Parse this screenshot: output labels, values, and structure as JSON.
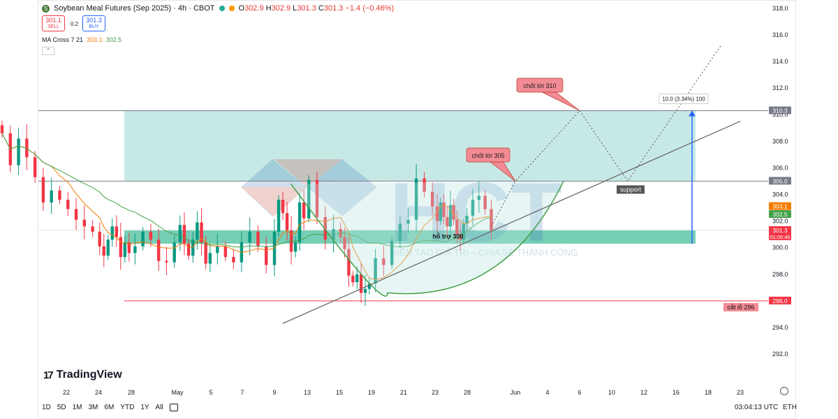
{
  "header": {
    "symbol_title": "Soybean Meal Futures (Sep 2025) · 4h · CBOT",
    "logo_letter": "S",
    "ohlc_prefix": "O",
    "open": "302.9",
    "high": "302.9",
    "low": "301.3",
    "close": "301.3",
    "change": "−1.4 (−0.46%)",
    "status_dot_green": "#22ab94",
    "status_dot_orange": "#ff9800"
  },
  "trade": {
    "sell_price": "301.1",
    "sell_label": "SELL",
    "spread": "0.2",
    "buy_price": "301.3",
    "buy_label": "BUY"
  },
  "indicator": {
    "name": "MA Cross 7 21",
    "fast_value": "303.1",
    "slow_value": "302.5"
  },
  "branding": {
    "tradingview": "TradingView",
    "watermark": "HCT",
    "watermark_slogan": "BIẾN TẠO GIÁ TRỊ – CHIA SẺ THÀNH CÔNG"
  },
  "bottom_bar": {
    "ranges": [
      "1D",
      "5D",
      "1M",
      "3M",
      "6M",
      "YTD",
      "1Y",
      "All"
    ],
    "time": "03:04:13 UTC",
    "session": "ETH"
  },
  "chart_data": {
    "type": "candlestick",
    "y_axis": {
      "min": 290.9,
      "max": 318.2,
      "ticks": [
        318.0,
        316.0,
        314.0,
        312.0,
        310.0,
        308.0,
        306.0,
        304.0,
        302.0,
        300.0,
        298.0,
        296.0,
        294.0,
        292.0
      ]
    },
    "x_labels": [
      "22",
      "24",
      "28",
      "May",
      "5",
      "7",
      "9",
      "13",
      "15",
      "19",
      "21",
      "23",
      "28",
      "Jun",
      "4",
      "6",
      "10",
      "12",
      "16",
      "18",
      "23"
    ],
    "x_label_dates": [
      "2025-04-22",
      "2025-04-24",
      "2025-04-28",
      "2025-05-01",
      "2025-05-05",
      "2025-05-07",
      "2025-05-09",
      "2025-05-13",
      "2025-05-15",
      "2025-05-19",
      "2025-05-21",
      "2025-05-23",
      "2025-05-28",
      "2025-06-01",
      "2025-06-04",
      "2025-06-06",
      "2025-06-10",
      "2025-06-12",
      "2025-06-16",
      "2025-06-18",
      "2025-06-23"
    ],
    "close_series": [
      308.6,
      306.2,
      308.2,
      306.8,
      305.3,
      303.4,
      304.3,
      303.6,
      302.9,
      302.1,
      301.6,
      301.2,
      300.1,
      299.4,
      300.6,
      301.6,
      300.8,
      299.3,
      300.4,
      299.6,
      300.1,
      301.2,
      300.6,
      299.0,
      298.9,
      300.4,
      301.7,
      300.3,
      299.4,
      300.6,
      301.9,
      300.4,
      298.8,
      299.6,
      300.1,
      299.3,
      298.9,
      300.4,
      301.2,
      300.1,
      298.7,
      301.2,
      303.6,
      302.6,
      301.3,
      299.7,
      300.4,
      303.4,
      302.2,
      305.1,
      302.3,
      300.6,
      301.4,
      300.8,
      299.9,
      297.9,
      297.4,
      298.0,
      296.6,
      296.9,
      297.3,
      299.2,
      298.7,
      300.5,
      301.8,
      302.1,
      305.2,
      304.2,
      303.1,
      302.0,
      303.4,
      302.3,
      301.6,
      303.2,
      302.1,
      301.0,
      300.6,
      301.8,
      302.4,
      303.6,
      303.9,
      302.9,
      301.3
    ],
    "ma_fast": {
      "name": "MA 7",
      "color": "#f57c00",
      "value": 303.1
    },
    "ma_slow": {
      "name": "MA 21",
      "color": "#43a047",
      "value": 302.5
    },
    "price_labels": [
      {
        "text": "310.3",
        "value": 310.3,
        "color": "#787b86"
      },
      {
        "text": "305.0",
        "value": 305.0,
        "color": "#787b86"
      },
      {
        "text": "303.1",
        "value": 303.1,
        "color": "#f57c00"
      },
      {
        "text": "302.5",
        "value": 302.5,
        "color": "#43a047"
      },
      {
        "text": "301.3",
        "sub": "01:05:46",
        "value": 301.3,
        "color": "#f23645"
      },
      {
        "text": "296.0",
        "value": 296.0,
        "color": "#f23645"
      }
    ],
    "horizontal_lines": [
      {
        "value": 310.3,
        "color": "#787b86"
      },
      {
        "value": 305.0,
        "color": "#787b86"
      },
      {
        "value": 296.0,
        "color": "#f23645"
      }
    ],
    "zones": [
      {
        "from": 305.0,
        "to": 310.3,
        "color": "#b9e4e0"
      },
      {
        "from": 300.3,
        "to": 301.3,
        "color": "#5ec6a8"
      }
    ],
    "annotations": [
      {
        "text": "chốt lời 310",
        "type": "callout",
        "color": "#f28b93"
      },
      {
        "text": "chốt lời 305",
        "type": "callout",
        "color": "#f28b93"
      },
      {
        "text": "support",
        "type": "tag"
      },
      {
        "text": "hỗ trợ 300",
        "type": "label"
      },
      {
        "text": "cắt lỗ 296",
        "type": "label",
        "color": "#f28b93"
      },
      {
        "text": "10.0 (3.34%) 100",
        "type": "measure"
      }
    ],
    "grid": false,
    "legend": "top-left"
  }
}
